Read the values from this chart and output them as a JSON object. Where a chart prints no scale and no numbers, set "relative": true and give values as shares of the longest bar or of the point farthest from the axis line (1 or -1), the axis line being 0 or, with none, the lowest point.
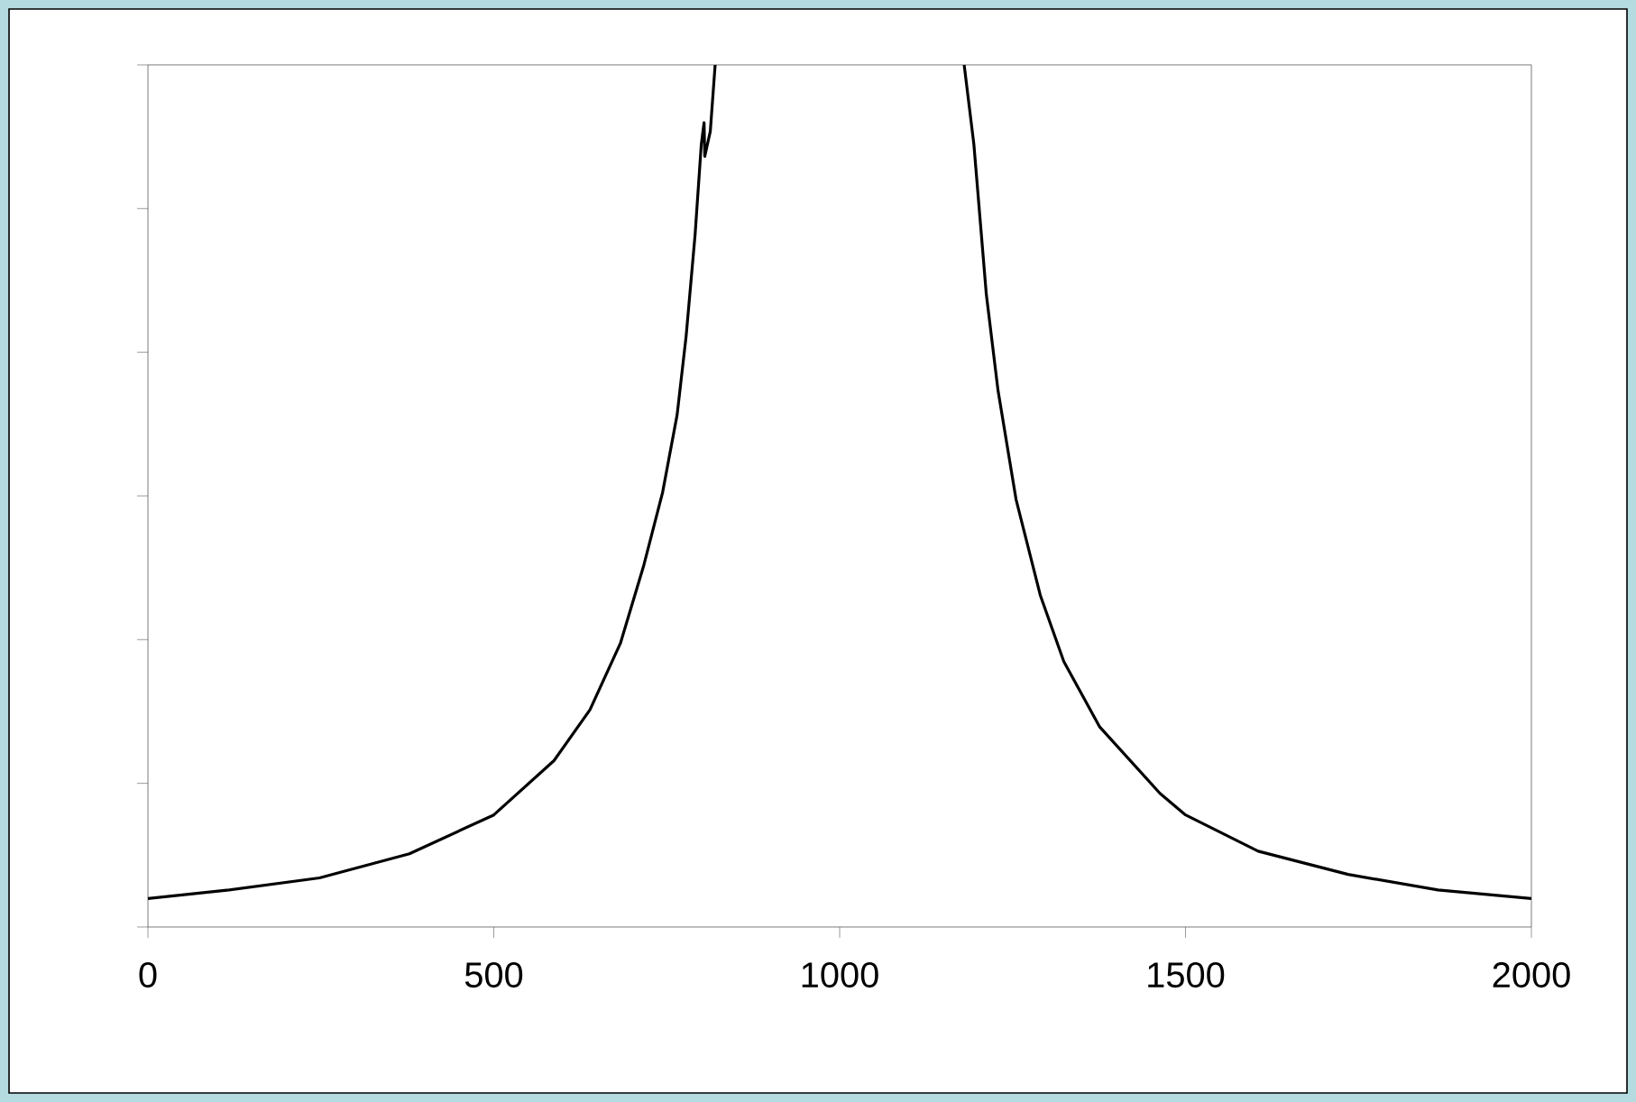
{
  "chart_data": {
    "type": "line",
    "relative": true,
    "tick_labels": "x",
    "xlim": [
      0,
      2000
    ],
    "xticks": [
      0,
      500,
      1000,
      1500,
      2000
    ],
    "series": [
      {
        "color": "#000000",
        "x": [
          0,
          117,
          248,
          378,
          500,
          587,
          639,
          683,
          717,
          744,
          765,
          778,
          791,
          800,
          804,
          805,
          813,
          820,
          1000,
          1180,
          1194,
          1212,
          1229,
          1255,
          1290,
          1324,
          1376,
          1463,
          1500,
          1605,
          1735,
          1865,
          2000
        ],
        "values": [
          0.033,
          0.043,
          0.057,
          0.085,
          0.13,
          0.193,
          0.252,
          0.329,
          0.42,
          0.504,
          0.594,
          0.685,
          0.803,
          0.908,
          0.933,
          0.894,
          0.923,
          1.0,
          null,
          1.0,
          0.908,
          0.734,
          0.622,
          0.496,
          0.385,
          0.308,
          0.232,
          0.155,
          0.13,
          0.088,
          0.061,
          0.043,
          0.033
        ]
      }
    ]
  }
}
